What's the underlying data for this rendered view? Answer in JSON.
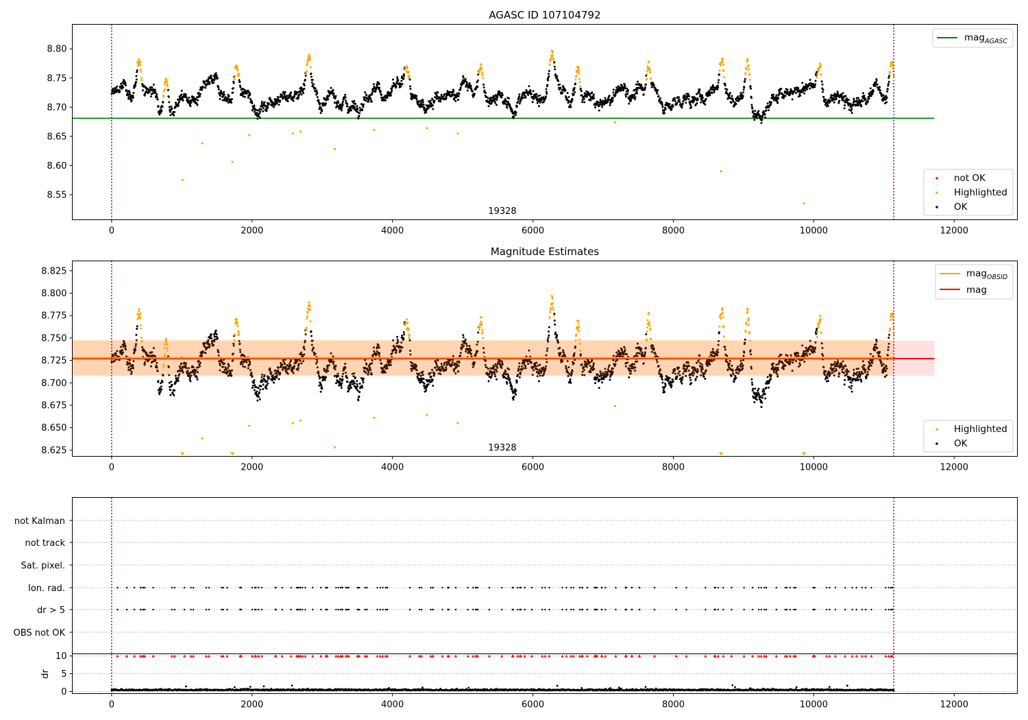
{
  "chart_data": [
    {
      "type": "scatter",
      "title": "AGASC ID 107104792",
      "xlim": [
        -560,
        12900
      ],
      "ylim": [
        8.507,
        8.842
      ],
      "xticks": [
        "0",
        "2000",
        "4000",
        "6000",
        "8000",
        "10000",
        "12000"
      ],
      "yticks": [
        "8.55",
        "8.60",
        "8.65",
        "8.70",
        "8.75",
        "8.80"
      ],
      "obsid_label": "19328",
      "obsid_boundaries_x": [
        0,
        11140
      ],
      "lines": [
        {
          "name": "mag",
          "sub": "AGASC",
          "y": 8.681,
          "x_end": 11720,
          "color": "#008000"
        }
      ],
      "series": [
        {
          "name": "not OK",
          "color": "#ff0000"
        },
        {
          "name": "Highlighted",
          "color": "#ffa500"
        },
        {
          "name": "OK",
          "color": "#000000"
        }
      ],
      "ok_range": [
        8.68,
        8.78
      ],
      "highlight_bursts_x": [
        400,
        770,
        1780,
        2800,
        4210,
        5260,
        6270,
        6640,
        7650,
        8690,
        9060,
        10080,
        11110
      ],
      "highlight_outliers": [
        [
          1010,
          8.575
        ],
        [
          1290,
          8.638
        ],
        [
          1720,
          8.606
        ],
        [
          1960,
          8.652
        ],
        [
          2580,
          8.655
        ],
        [
          2690,
          8.658
        ],
        [
          3180,
          8.628
        ],
        [
          3740,
          8.661
        ],
        [
          4490,
          8.664
        ],
        [
          4930,
          8.655
        ],
        [
          7170,
          8.674
        ],
        [
          8680,
          8.59
        ],
        [
          9860,
          8.535
        ]
      ],
      "legend_lines_placement": "upper right",
      "legend_points_placement": "lower right"
    },
    {
      "type": "scatter",
      "title": "Magnitude Estimates",
      "xlim": [
        -560,
        12900
      ],
      "ylim": [
        8.618,
        8.836
      ],
      "xticks": [
        "0",
        "2000",
        "4000",
        "6000",
        "8000",
        "10000",
        "12000"
      ],
      "yticks": [
        "8.625",
        "8.650",
        "8.675",
        "8.700",
        "8.725",
        "8.750",
        "8.775",
        "8.800",
        "8.825"
      ],
      "obsid_label": "19328",
      "lines": [
        {
          "name": "mag",
          "sub": "OBSID",
          "y": 8.728,
          "x_end": 11140,
          "color": "#ffa500"
        },
        {
          "name": "mag",
          "sub": "",
          "y": 8.727,
          "x_end": 11720,
          "color": "#ff0000"
        }
      ],
      "bands": [
        {
          "y0": 8.708,
          "y1": 8.747,
          "x_end": 11720,
          "color": "#ff0000",
          "opacity": 0.12
        },
        {
          "y0": 8.708,
          "y1": 8.748,
          "x_end": 11140,
          "color": "#ffa500",
          "opacity": 0.2
        }
      ],
      "series": [
        {
          "name": "Highlighted",
          "color": "#ffa500"
        },
        {
          "name": "OK",
          "color": "#000000"
        }
      ],
      "clipped_markers_x": [
        1010,
        1720,
        8680,
        9860
      ]
    },
    {
      "type": "scatter",
      "title": "",
      "xlim": [
        -560,
        12900
      ],
      "categories": [
        "not Kalman",
        "not track",
        "Sat. pixel.",
        "Ion. rad.",
        "dr > 5",
        "OBS not OK"
      ],
      "flag_rows_with_points": [
        "Ion. rad.",
        "dr > 5"
      ]
    },
    {
      "type": "scatter",
      "title": "",
      "ylabel": "dr",
      "xlim": [
        -560,
        12900
      ],
      "ylim": [
        -0.6,
        10.6
      ],
      "yticks": [
        "0",
        "5",
        "10"
      ],
      "xticks": [
        "0",
        "2000",
        "4000",
        "6000",
        "8000",
        "10000",
        "12000"
      ],
      "dr_typical": [
        0,
        1
      ],
      "clip_marker_y": 10,
      "clip_marker_color": "#ff0000"
    }
  ]
}
